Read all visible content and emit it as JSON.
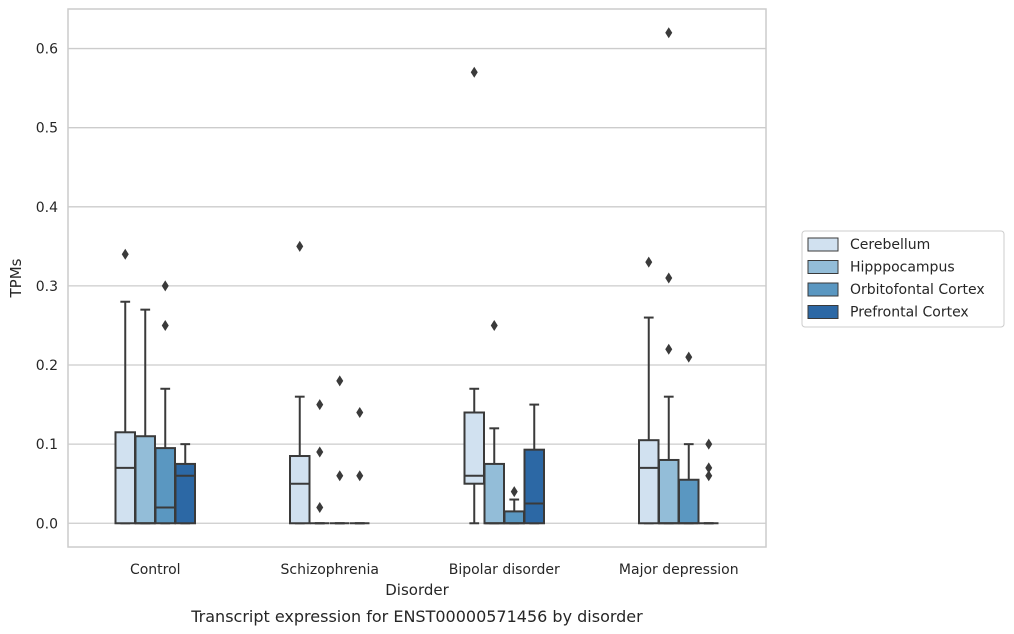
{
  "chart_data": {
    "type": "box",
    "title": "",
    "caption": "Transcript expression for ENST00000571456 by disorder",
    "xlabel": "Disorder",
    "ylabel": "TPMs",
    "categories": [
      "Control",
      "Schizophrenia",
      "Bipolar disorder",
      "Major depression"
    ],
    "ylim": [
      -0.03,
      0.65
    ],
    "yticks": [
      "0.0",
      "0.1",
      "0.2",
      "0.3",
      "0.4",
      "0.5",
      "0.6"
    ],
    "grid": true,
    "legend_placement": "right",
    "series": [
      {
        "name": "Cerebellum",
        "color": "#d1e1f0",
        "boxes": [
          {
            "q1": 0.0,
            "median": 0.07,
            "q3": 0.115,
            "whisker_low": 0.0,
            "whisker_high": 0.28,
            "outliers": [
              0.34
            ]
          },
          {
            "q1": 0.0,
            "median": 0.05,
            "q3": 0.085,
            "whisker_low": 0.0,
            "whisker_high": 0.16,
            "outliers": [
              0.35
            ]
          },
          {
            "q1": 0.05,
            "median": 0.06,
            "q3": 0.14,
            "whisker_low": 0.0,
            "whisker_high": 0.17,
            "outliers": [
              0.57
            ]
          },
          {
            "q1": 0.0,
            "median": 0.07,
            "q3": 0.105,
            "whisker_low": 0.0,
            "whisker_high": 0.26,
            "outliers": [
              0.33
            ]
          }
        ]
      },
      {
        "name": "Hipppocampus",
        "color": "#93bdd8",
        "boxes": [
          {
            "q1": 0.0,
            "median": 0.0,
            "q3": 0.11,
            "whisker_low": 0.0,
            "whisker_high": 0.27,
            "outliers": []
          },
          {
            "q1": 0.0,
            "median": 0.0,
            "q3": 0.0,
            "whisker_low": 0.0,
            "whisker_high": 0.0,
            "outliers": [
              0.02,
              0.09,
              0.15
            ]
          },
          {
            "q1": 0.0,
            "median": 0.0,
            "q3": 0.075,
            "whisker_low": 0.0,
            "whisker_high": 0.12,
            "outliers": [
              0.25
            ]
          },
          {
            "q1": 0.0,
            "median": 0.0,
            "q3": 0.08,
            "whisker_low": 0.0,
            "whisker_high": 0.16,
            "outliers": [
              0.22,
              0.31,
              0.62
            ]
          }
        ]
      },
      {
        "name": "Orbitofontal Cortex",
        "color": "#5a97c1",
        "boxes": [
          {
            "q1": 0.0,
            "median": 0.02,
            "q3": 0.095,
            "whisker_low": 0.0,
            "whisker_high": 0.17,
            "outliers": [
              0.25,
              0.3
            ]
          },
          {
            "q1": 0.0,
            "median": 0.0,
            "q3": 0.0,
            "whisker_low": 0.0,
            "whisker_high": 0.0,
            "outliers": [
              0.06,
              0.18
            ]
          },
          {
            "q1": 0.0,
            "median": 0.0,
            "q3": 0.015,
            "whisker_low": 0.0,
            "whisker_high": 0.03,
            "outliers": [
              0.04
            ]
          },
          {
            "q1": 0.0,
            "median": 0.0,
            "q3": 0.055,
            "whisker_low": 0.0,
            "whisker_high": 0.1,
            "outliers": [
              0.21
            ]
          }
        ]
      },
      {
        "name": "Prefrontal Cortex",
        "color": "#2c68a5",
        "boxes": [
          {
            "q1": 0.0,
            "median": 0.06,
            "q3": 0.075,
            "whisker_low": 0.0,
            "whisker_high": 0.1,
            "outliers": []
          },
          {
            "q1": 0.0,
            "median": 0.0,
            "q3": 0.0,
            "whisker_low": 0.0,
            "whisker_high": 0.0,
            "outliers": [
              0.06,
              0.14
            ]
          },
          {
            "q1": 0.0,
            "median": 0.025,
            "q3": 0.093,
            "whisker_low": 0.0,
            "whisker_high": 0.15,
            "outliers": []
          },
          {
            "q1": 0.0,
            "median": 0.0,
            "q3": 0.0,
            "whisker_low": 0.0,
            "whisker_high": 0.0,
            "outliers": [
              0.06,
              0.07,
              0.1
            ]
          }
        ]
      }
    ]
  }
}
